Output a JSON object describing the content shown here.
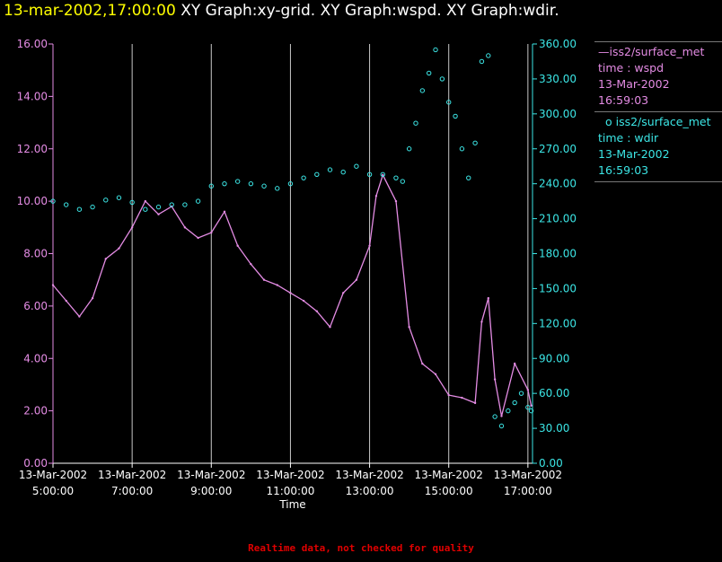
{
  "header": {
    "timestamp": "13-mar-2002,17:00:00",
    "graphs": "XY Graph:xy-grid.  XY Graph:wspd.  XY Graph:wdir."
  },
  "legend": {
    "wspd": {
      "name": "iss2/surface_met",
      "var": "time : wspd",
      "date": "13-Mar-2002",
      "time": "16:59:03"
    },
    "wdir": {
      "name": "iss2/surface_met",
      "var": "time : wdir",
      "date": "13-Mar-2002",
      "time": "16:59:03"
    }
  },
  "footer": "Realtime data, not checked for quality",
  "colors": {
    "wspd": "#e48ce4",
    "wdir": "#3ce6e6",
    "grid": "#c8c8c8",
    "axis_left": "#e48ce4",
    "axis_right": "#3ce6e6"
  },
  "chart_data": {
    "type": "line",
    "xlabel": "Time",
    "x_ticks": [
      {
        "date": "13-Mar-2002",
        "time": "5:00:00"
      },
      {
        "date": "13-Mar-2002",
        "time": "7:00:00"
      },
      {
        "date": "13-Mar-2002",
        "time": "9:00:00"
      },
      {
        "date": "13-Mar-2002",
        "time": "11:00:00"
      },
      {
        "date": "13-Mar-2002",
        "time": "13:00:00"
      },
      {
        "date": "13-Mar-2002",
        "time": "15:00:00"
      },
      {
        "date": "13-Mar-2002",
        "time": "17:00:00"
      }
    ],
    "xlim": [
      "05:00",
      "17:07"
    ],
    "y_left": {
      "lim": [
        0,
        16
      ],
      "ticks": [
        "0.00",
        "2.00",
        "4.00",
        "6.00",
        "8.00",
        "10.00",
        "12.00",
        "14.00",
        "16.00"
      ]
    },
    "y_right": {
      "lim": [
        0,
        360
      ],
      "ticks": [
        "0.00",
        "30.00",
        "60.00",
        "90.00",
        "120.00",
        "150.00",
        "180.00",
        "210.00",
        "240.00",
        "270.00",
        "300.00",
        "330.00",
        "360.00"
      ]
    },
    "grid": "vertical lines at x ticks",
    "series": [
      {
        "name": "wspd",
        "axis": "left",
        "style": "line",
        "x": [
          "05:00",
          "05:20",
          "05:40",
          "06:00",
          "06:20",
          "06:40",
          "07:00",
          "07:20",
          "07:40",
          "08:00",
          "08:20",
          "08:40",
          "09:00",
          "09:20",
          "09:40",
          "10:00",
          "10:20",
          "10:40",
          "11:00",
          "11:20",
          "11:40",
          "12:00",
          "12:20",
          "12:40",
          "13:00",
          "13:10",
          "13:20",
          "13:40",
          "14:00",
          "14:20",
          "14:40",
          "15:00",
          "15:20",
          "15:40",
          "15:50",
          "16:00",
          "16:10",
          "16:20",
          "16:40",
          "17:00",
          "17:05"
        ],
        "values": [
          6.8,
          6.2,
          5.6,
          6.3,
          7.8,
          8.2,
          9.0,
          10.0,
          9.5,
          9.8,
          9.0,
          8.6,
          8.8,
          9.6,
          8.3,
          7.6,
          7.0,
          6.8,
          6.5,
          6.2,
          5.8,
          5.2,
          6.5,
          7.0,
          8.3,
          10.2,
          11.0,
          10.0,
          5.2,
          3.8,
          3.4,
          2.6,
          2.5,
          2.3,
          5.4,
          6.3,
          3.2,
          1.8,
          3.8,
          2.8,
          2.2
        ]
      },
      {
        "name": "wdir",
        "axis": "right",
        "style": "markers",
        "x": [
          "05:00",
          "05:20",
          "05:40",
          "06:00",
          "06:20",
          "06:40",
          "07:00",
          "07:20",
          "07:40",
          "08:00",
          "08:20",
          "08:40",
          "09:00",
          "09:20",
          "09:40",
          "10:00",
          "10:20",
          "10:40",
          "11:00",
          "11:20",
          "11:40",
          "12:00",
          "12:20",
          "12:40",
          "13:00",
          "13:20",
          "13:40",
          "13:50",
          "14:00",
          "14:10",
          "14:20",
          "14:30",
          "14:40",
          "14:50",
          "15:00",
          "15:10",
          "15:20",
          "15:30",
          "15:40",
          "15:50",
          "16:00",
          "16:10",
          "16:20",
          "16:30",
          "16:40",
          "16:50",
          "17:00",
          "17:05"
        ],
        "values": [
          225,
          222,
          218,
          220,
          226,
          228,
          224,
          218,
          220,
          222,
          222,
          225,
          238,
          240,
          242,
          240,
          238,
          236,
          240,
          245,
          248,
          252,
          250,
          255,
          248,
          248,
          245,
          242,
          270,
          292,
          320,
          335,
          355,
          330,
          310,
          298,
          270,
          245,
          275,
          345,
          350,
          40,
          32,
          45,
          52,
          60,
          48,
          45
        ]
      }
    ]
  }
}
